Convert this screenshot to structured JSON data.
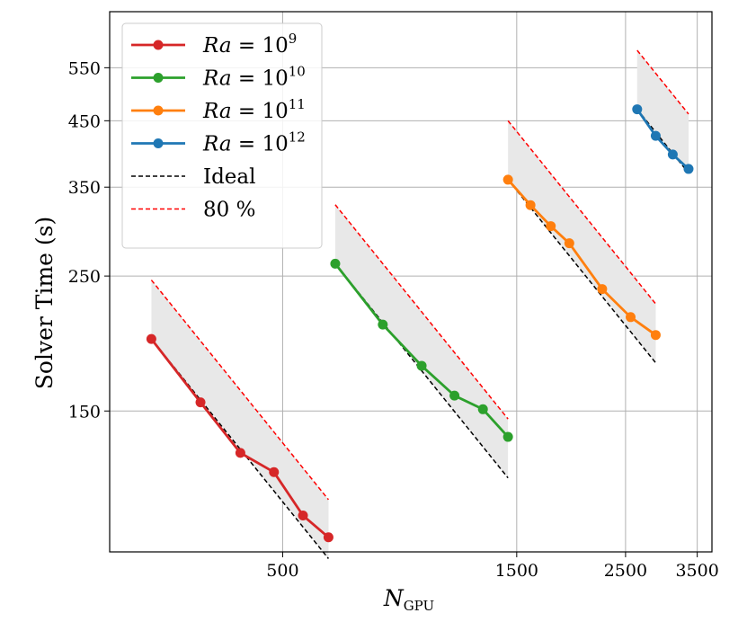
{
  "chart_data": {
    "type": "line",
    "xscale": "log",
    "yscale": "log",
    "xlim": [
      222,
      3750
    ],
    "ylim": [
      88,
      680
    ],
    "xticks": [
      500,
      1500,
      2500,
      3500
    ],
    "yticks": [
      150,
      250,
      350,
      450,
      550
    ],
    "xlabel": {
      "main": "N",
      "sub": "GPU"
    },
    "ylabel": "Solver Time (s)",
    "grid": true,
    "legend_position": "top-left",
    "series": [
      {
        "name": "Ra = 10^9",
        "label": "Ra = 10",
        "exp": "9",
        "color": "#d62728",
        "x": [
          270,
          340,
          410,
          480,
          550,
          620
        ],
        "y": [
          197,
          155,
          128,
          119,
          101,
          93
        ]
      },
      {
        "name": "Ra = 10^10",
        "label": "Ra = 10",
        "exp": "10",
        "color": "#2ca02c",
        "x": [
          640,
          800,
          960,
          1120,
          1280,
          1440
        ],
        "y": [
          262,
          208,
          178,
          159,
          151,
          136
        ]
      },
      {
        "name": "Ra = 10^11",
        "label": "Ra = 10",
        "exp": "11",
        "color": "#ff7f0e",
        "x": [
          1440,
          1600,
          1760,
          1920,
          2240,
          2560,
          2880
        ],
        "y": [
          360,
          327,
          302,
          283,
          238,
          214,
          200
        ]
      },
      {
        "name": "Ra = 10^12",
        "label": "Ra = 10",
        "exp": "12",
        "color": "#1f77b4",
        "x": [
          2640,
          2880,
          3120,
          3360
        ],
        "y": [
          470,
          425,
          396,
          375
        ]
      }
    ],
    "reference_lines": [
      {
        "name": "Ideal",
        "label": "Ideal",
        "color": "#000000",
        "dash": "dashed"
      },
      {
        "name": "80 %",
        "label": "80 %",
        "color": "#ff0000",
        "dash": "dashed",
        "efficiency": 0.8
      }
    ],
    "shaded_band": {
      "color": "#e8e8e8",
      "between": [
        "Ideal",
        "80 %"
      ]
    }
  }
}
